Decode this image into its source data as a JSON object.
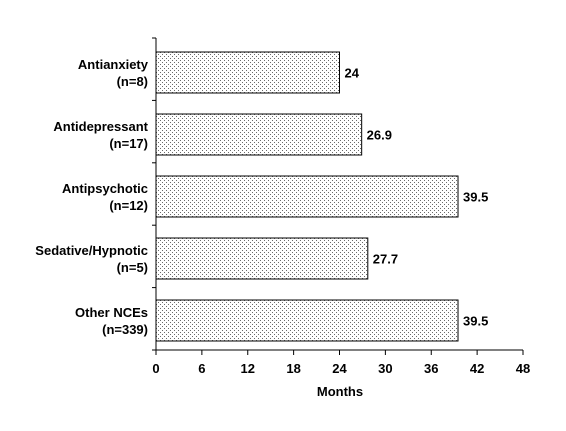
{
  "chart_data": {
    "type": "bar",
    "orientation": "horizontal",
    "categories": [
      [
        "Antianxiety",
        "(n=8)"
      ],
      [
        "Antidepressant",
        "(n=17)"
      ],
      [
        "Antipsychotic",
        "(n=12)"
      ],
      [
        "Sedative/Hypnotic",
        "(n=5)"
      ],
      [
        "Other NCEs",
        "(n=339)"
      ]
    ],
    "values": [
      24,
      26.9,
      39.5,
      27.7,
      39.5
    ],
    "value_labels": [
      "24",
      "26.9",
      "39.5",
      "27.7",
      "39.5"
    ],
    "xlabel": "Months",
    "ylabel": "",
    "xlim": [
      0,
      48
    ],
    "xticks": [
      0,
      6,
      12,
      18,
      24,
      30,
      36,
      42,
      48
    ],
    "grid": false,
    "bar_fill": "dotted",
    "colors": {
      "bar_fill": "#ffffff",
      "bar_dots": "#6a6a6a",
      "bar_stroke": "#000000",
      "axis": "#000000"
    }
  }
}
